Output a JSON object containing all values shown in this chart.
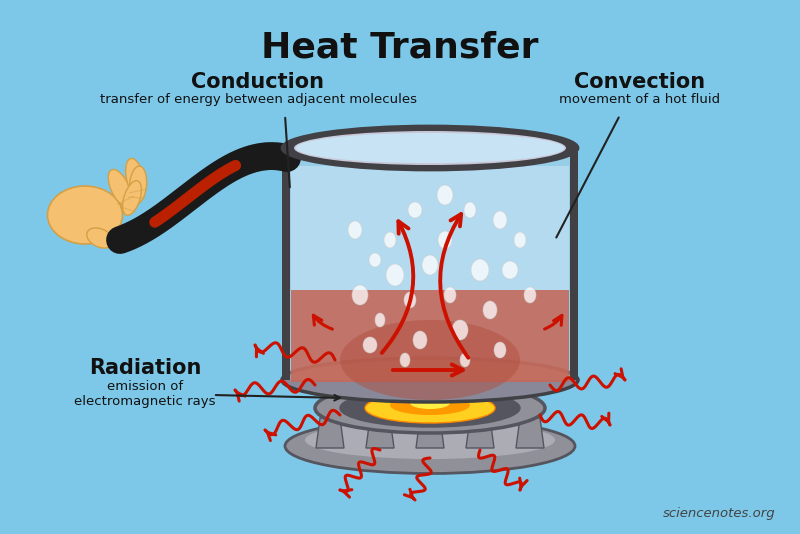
{
  "title": "Heat Transfer",
  "title_fontsize": 26,
  "title_fontweight": "bold",
  "bg_color": "#7DC8E8",
  "text_conduction_bold": "Conduction",
  "text_conduction_desc": "transfer of energy between adjacent molecules",
  "text_convection_bold": "Convection",
  "text_convection_desc": "movement of a hot fluid",
  "text_radiation_bold": "Radiation",
  "text_radiation_desc1": "emission of",
  "text_radiation_desc2": "electromagnetic rays",
  "text_watermark": "sciencenotes.org",
  "pot_metal_dark": "#404045",
  "pot_metal_mid": "#888898",
  "pot_metal_light": "#C8C8D8",
  "water_blue": "#B8DCF0",
  "water_hot": "#D06858",
  "water_warm": "#C07870",
  "flame_yellow": "#FFD020",
  "flame_orange": "#FF8800",
  "stove_dark": "#555560",
  "stove_mid": "#909098",
  "stove_light": "#C0C0C8",
  "handle_black": "#1a1a1a",
  "handle_red": "#BB2000",
  "hand_skin": "#F5C070",
  "hand_dark": "#D4A045",
  "arrow_red": "#CC1100",
  "label_black": "#111111",
  "annot_black": "#222222"
}
